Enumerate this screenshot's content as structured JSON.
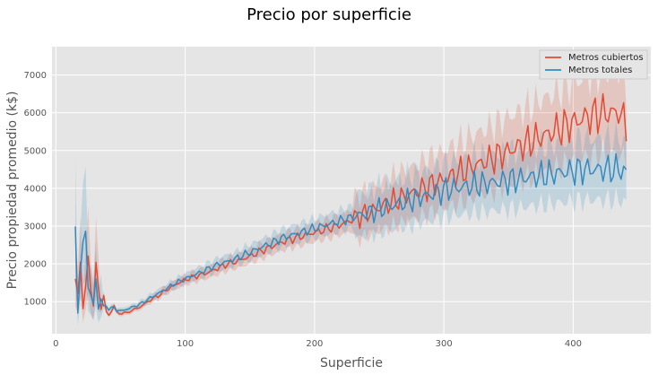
{
  "chart_data": {
    "type": "line",
    "title": "Precio por superficie",
    "xlabel": "Superficie",
    "ylabel": "Precio propiedad promedio (k$)",
    "xlim": [
      -3,
      460
    ],
    "ylim": [
      150,
      7750
    ],
    "xticks": [
      0,
      100,
      200,
      300,
      400
    ],
    "yticks": [
      1000,
      2000,
      3000,
      4000,
      5000,
      6000,
      7000
    ],
    "grid": true,
    "legend_position": "top-right",
    "background_color": "#e5e5e5",
    "grid_color": "#ffffff",
    "x_step": 2,
    "series": [
      {
        "name": "Metros cubiertos",
        "color": "#e24a33",
        "x_start": 15,
        "x_end": 441,
        "values": [
          1600,
          1150,
          1950,
          950,
          1400,
          1850,
          1500,
          1000,
          1700,
          1350,
          820,
          1150,
          730,
          640,
          750,
          900,
          720,
          680,
          700,
          700,
          700,
          750,
          760,
          800,
          830,
          850,
          900,
          950,
          1000,
          1040,
          1080,
          1120,
          1150,
          1200,
          1250,
          1300,
          1340,
          1380,
          1420,
          1460,
          1500,
          1530,
          1560,
          1590,
          1620,
          1640,
          1660,
          1680,
          1700,
          1720,
          1740,
          1760,
          1790,
          1820,
          1850,
          1880,
          1910,
          1940,
          1970,
          2000,
          2020,
          2040,
          2060,
          2080,
          2100,
          2130,
          2160,
          2190,
          2220,
          2250,
          2280,
          2310,
          2340,
          2370,
          2400,
          2430,
          2460,
          2490,
          2520,
          2550,
          2580,
          2600,
          2620,
          2640,
          2660,
          2680,
          2700,
          2720,
          2740,
          2760,
          2780,
          2800,
          2820,
          2840,
          2860,
          2880,
          2900,
          2920,
          2940,
          2960,
          2980,
          3000,
          3020,
          3050,
          3080,
          3110,
          3140,
          3170,
          3200,
          3230,
          3260,
          3290,
          3320,
          3350,
          3380,
          3410,
          3440,
          3470,
          3500,
          3530,
          3560,
          3590,
          3620,
          3650,
          3680,
          3710,
          3740,
          3770,
          3800,
          3830,
          3860,
          3890,
          3920,
          3950,
          3980,
          4010,
          4040,
          4070,
          4100,
          4130,
          4160,
          4190,
          4220,
          4250,
          4280,
          4310,
          4340,
          4370,
          4400,
          4430,
          4460,
          4490,
          4520,
          4550,
          4580,
          4610,
          4640,
          4670,
          4700,
          4730,
          4760,
          4790,
          4820,
          4850,
          4880,
          4910,
          4940,
          4970,
          5000,
          5030,
          5060,
          5090,
          5120,
          5150,
          5180,
          5210,
          5240,
          5270,
          5300,
          5330,
          5360,
          5390,
          5420,
          5450,
          5480,
          5510,
          5540,
          5570,
          5600,
          5630,
          5660,
          5690,
          5720,
          5750,
          5780,
          5810,
          5840,
          5870,
          5890,
          5910,
          5930,
          5950,
          5970,
          5990,
          6000,
          6000,
          6000,
          6000,
          6000,
          6000,
          6000,
          6000,
          5800,
          5500
        ]
      },
      {
        "name": "Metros totales",
        "color": "#348abd",
        "x_start": 15,
        "x_end": 441,
        "values": [
          2550,
          850,
          1900,
          2200,
          3000,
          1500,
          1150,
          900,
          1550,
          900,
          1100,
          850,
          900,
          800,
          820,
          860,
          780,
          760,
          760,
          780,
          800,
          820,
          850,
          880,
          900,
          930,
          970,
          1010,
          1050,
          1090,
          1130,
          1170,
          1210,
          1250,
          1290,
          1330,
          1370,
          1410,
          1450,
          1490,
          1520,
          1550,
          1580,
          1610,
          1640,
          1670,
          1700,
          1730,
          1760,
          1790,
          1820,
          1850,
          1880,
          1910,
          1940,
          1970,
          2000,
          2020,
          2040,
          2060,
          2080,
          2100,
          2130,
          2160,
          2190,
          2220,
          2250,
          2280,
          2310,
          2340,
          2370,
          2400,
          2430,
          2460,
          2490,
          2520,
          2550,
          2580,
          2610,
          2640,
          2670,
          2700,
          2720,
          2740,
          2760,
          2780,
          2800,
          2820,
          2840,
          2860,
          2880,
          2900,
          2920,
          2940,
          2960,
          2980,
          3000,
          3020,
          3040,
          3060,
          3080,
          3100,
          3120,
          3140,
          3160,
          3180,
          3200,
          3220,
          3240,
          3260,
          3280,
          3300,
          3320,
          3340,
          3360,
          3380,
          3400,
          3420,
          3440,
          3460,
          3480,
          3500,
          3520,
          3540,
          3560,
          3580,
          3600,
          3620,
          3640,
          3660,
          3680,
          3700,
          3720,
          3740,
          3760,
          3780,
          3800,
          3820,
          3840,
          3860,
          3880,
          3900,
          3920,
          3940,
          3960,
          3980,
          3990,
          4000,
          4010,
          4020,
          4030,
          4040,
          4050,
          4060,
          4070,
          4080,
          4090,
          4100,
          4110,
          4120,
          4130,
          4140,
          4150,
          4160,
          4170,
          4180,
          4190,
          4200,
          4210,
          4220,
          4230,
          4240,
          4250,
          4260,
          4270,
          4280,
          4290,
          4300,
          4310,
          4320,
          4330,
          4340,
          4350,
          4360,
          4370,
          4380,
          4390,
          4400,
          4410,
          4420,
          4430,
          4440,
          4450,
          4460,
          4470,
          4480,
          4490,
          4500,
          4500,
          4500,
          4500,
          4500,
          4500,
          4500,
          4500,
          4500,
          4500,
          4500,
          4500,
          4500,
          4500,
          4500,
          4500,
          4450,
          4400
        ]
      }
    ]
  }
}
